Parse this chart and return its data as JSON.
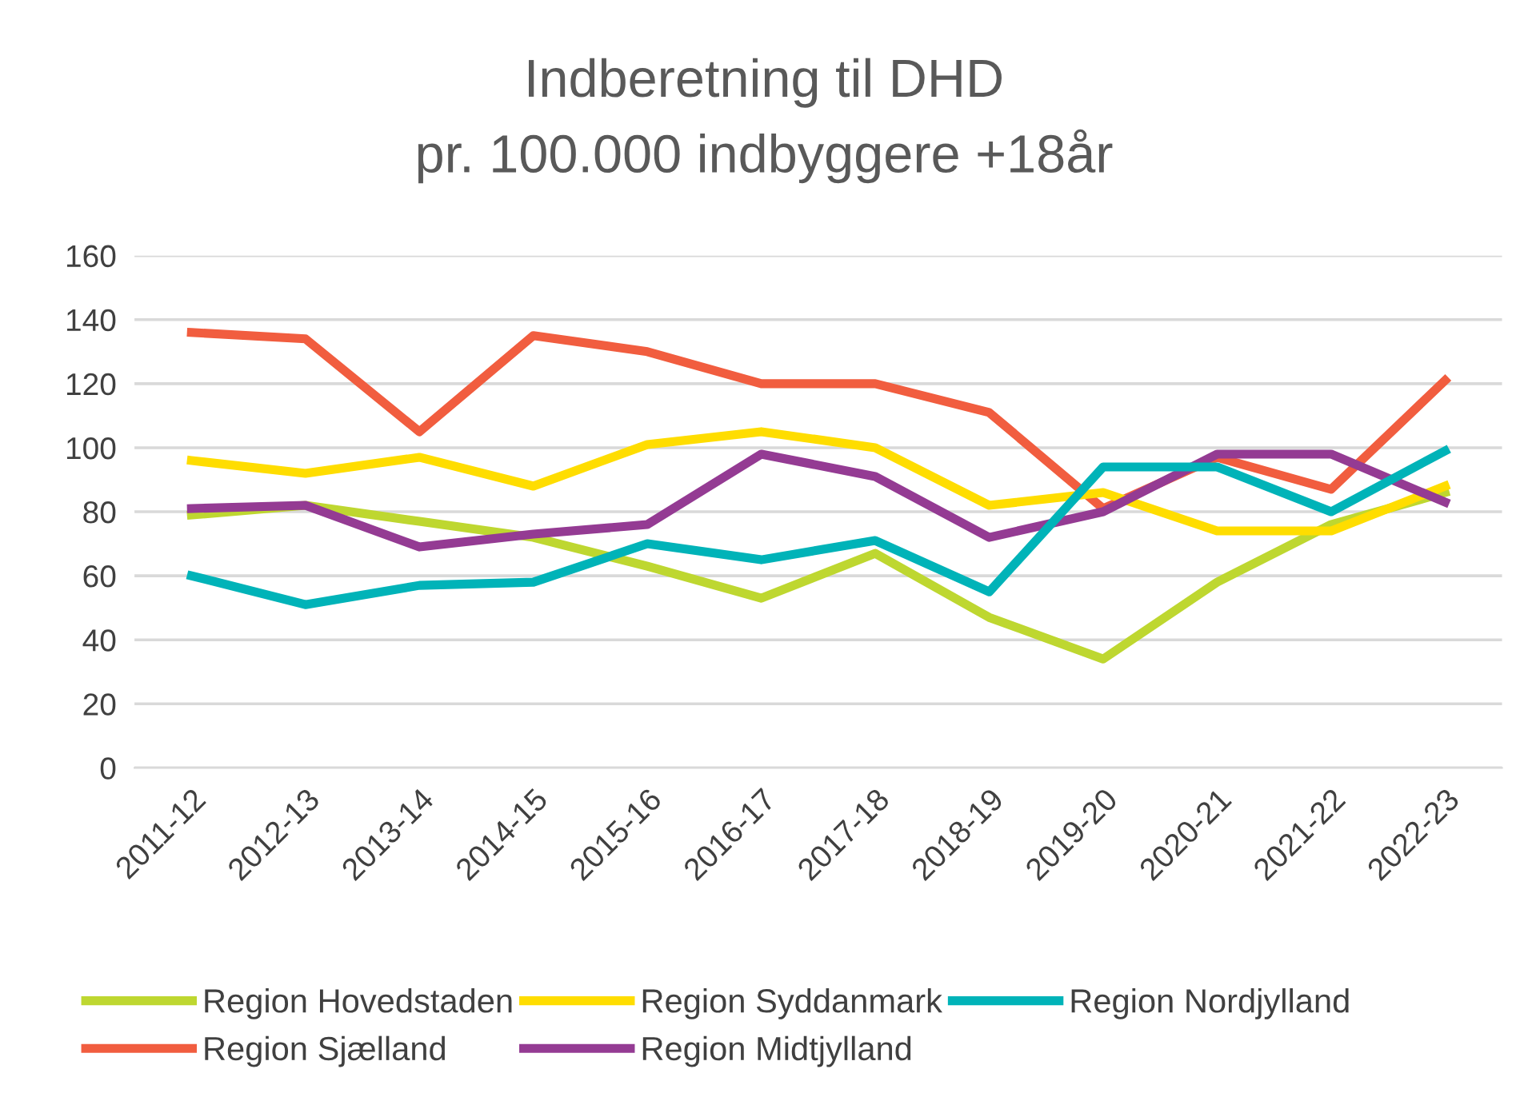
{
  "chart_data": {
    "type": "line",
    "title": "Indberetning til DHD\npr. 100.000 indbyggere +18år",
    "categories": [
      "2011-12",
      "2012-13",
      "2013-14",
      "2014-15",
      "2015-16",
      "2016-17",
      "2017-18",
      "2018-19",
      "2019-20",
      "2020-21",
      "2021-22",
      "2022-23"
    ],
    "series": [
      {
        "name": "Region Hovedstaden",
        "color": "#bed730",
        "values": [
          79,
          82,
          77,
          72,
          63,
          53,
          67,
          47,
          34,
          58,
          76,
          86
        ]
      },
      {
        "name": "Region Sjælland",
        "color": "#f15d3f",
        "values": [
          136,
          134,
          105,
          135,
          130,
          120,
          120,
          111,
          81,
          97,
          87,
          121
        ]
      },
      {
        "name": "Region Syddanmark",
        "color": "#ffdd00",
        "values": [
          96,
          92,
          97,
          88,
          101,
          105,
          100,
          82,
          86,
          74,
          74,
          88
        ]
      },
      {
        "name": "Region Midtjylland",
        "color": "#943b93",
        "values": [
          81,
          82,
          69,
          73,
          76,
          98,
          91,
          72,
          80,
          98,
          98,
          83
        ]
      },
      {
        "name": "Region Nordjylland",
        "color": "#00b3b8",
        "values": [
          60,
          51,
          57,
          58,
          70,
          65,
          71,
          55,
          94,
          94,
          80,
          99
        ]
      }
    ],
    "ylim": [
      0,
      160
    ],
    "yticks": [
      0,
      20,
      40,
      60,
      80,
      100,
      120,
      140,
      160
    ],
    "grid": "y",
    "legend": "bottom",
    "marker": "none",
    "line_style": "solid"
  }
}
